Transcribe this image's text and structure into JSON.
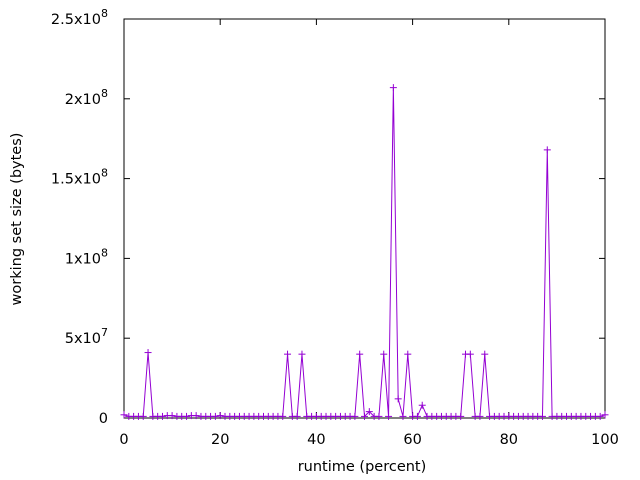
{
  "chart_data": {
    "type": "line",
    "title": "",
    "xlabel": "runtime (percent)",
    "ylabel": "working set size (bytes)",
    "xlim": [
      0,
      100
    ],
    "ylim": [
      0,
      250000000
    ],
    "grid": false,
    "legend": "none",
    "series_color": "#9400d3",
    "x_ticks": [
      {
        "value": 0,
        "label": "0"
      },
      {
        "value": 20,
        "label": "20"
      },
      {
        "value": 40,
        "label": "40"
      },
      {
        "value": 60,
        "label": "60"
      },
      {
        "value": 80,
        "label": "80"
      },
      {
        "value": 100,
        "label": "100"
      }
    ],
    "y_ticks": [
      {
        "value": 0,
        "mant": "0",
        "exp": ""
      },
      {
        "value": 50000000,
        "mant": "5x10",
        "exp": "7"
      },
      {
        "value": 100000000,
        "mant": "1x10",
        "exp": "8"
      },
      {
        "value": 150000000,
        "mant": "1.5x10",
        "exp": "8"
      },
      {
        "value": 200000000,
        "mant": "2x10",
        "exp": "8"
      },
      {
        "value": 250000000,
        "mant": "2.5x10",
        "exp": "8"
      }
    ],
    "series": [
      {
        "x": [
          0,
          1,
          2,
          3,
          4,
          5,
          6,
          7,
          8,
          9,
          10,
          11,
          12,
          13,
          14,
          15,
          16,
          17,
          18,
          19,
          20,
          21,
          22,
          23,
          24,
          25,
          26,
          27,
          28,
          29,
          30,
          31,
          32,
          33,
          34,
          35,
          36,
          37,
          38,
          39,
          40,
          41,
          42,
          43,
          44,
          45,
          46,
          47,
          48,
          49,
          50,
          51,
          52,
          53,
          54,
          55,
          56,
          57,
          58,
          59,
          60,
          61,
          62,
          63,
          64,
          65,
          66,
          67,
          68,
          69,
          70,
          71,
          72,
          73,
          74,
          75,
          76,
          77,
          78,
          79,
          80,
          81,
          82,
          83,
          84,
          85,
          86,
          87,
          88,
          89,
          90,
          91,
          92,
          93,
          94,
          95,
          96,
          97,
          98,
          99,
          100
        ],
        "values": [
          2000000,
          1000000,
          1000000,
          1000000,
          1000000,
          41000000,
          1000000,
          1000000,
          1000000,
          1500000,
          1500000,
          1000000,
          1000000,
          1000000,
          1500000,
          1500000,
          1000000,
          1000000,
          1000000,
          1000000,
          1500000,
          1000000,
          1000000,
          1000000,
          1000000,
          1000000,
          1000000,
          1000000,
          1000000,
          1000000,
          1000000,
          1000000,
          1000000,
          1000000,
          40000000,
          1000000,
          1000000,
          40000000,
          1000000,
          1000000,
          1000000,
          1000000,
          1000000,
          1000000,
          1000000,
          1000000,
          1000000,
          1000000,
          1000000,
          40000000,
          1000000,
          4000000,
          1000000,
          1000000,
          40000000,
          1000000,
          207000000,
          12000000,
          1000000,
          40000000,
          1000000,
          1000000,
          8000000,
          1000000,
          1000000,
          1000000,
          1000000,
          1000000,
          1000000,
          1000000,
          1000000,
          40000000,
          40000000,
          1000000,
          1000000,
          40000000,
          1000000,
          1000000,
          1000000,
          1000000,
          1000000,
          1000000,
          1000000,
          1000000,
          1000000,
          1000000,
          1000000,
          1000000,
          168000000,
          1000000,
          1000000,
          1000000,
          1000000,
          1000000,
          1000000,
          1000000,
          1000000,
          1000000,
          1000000,
          1000000,
          2000000
        ]
      }
    ]
  }
}
